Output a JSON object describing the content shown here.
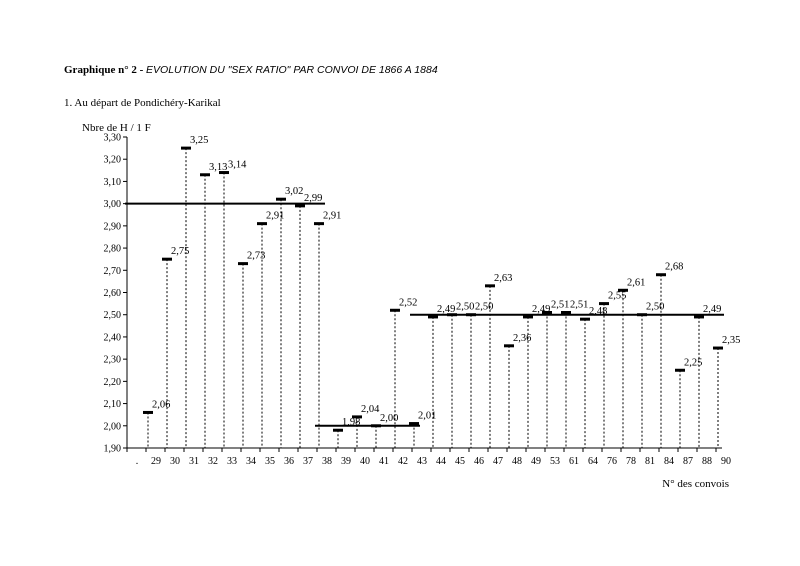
{
  "title": {
    "label": "Graphique n° 2 -",
    "text": "EVOLUTION DU \"SEX RATIO\" PAR CONVOI DE 1866 A 1884"
  },
  "subtitle": "1. Au départ de Pondichéry-Karikal",
  "chart_data": {
    "type": "scatter",
    "ylabel": "Nbre de H / 1 F",
    "xlabel": "N° des convois",
    "ylim": [
      1.9,
      3.3
    ],
    "ytick_step": 0.1,
    "grid": false,
    "categories": [
      ".",
      "29",
      "30",
      "31",
      "32",
      "33",
      "34",
      "35",
      "36",
      "37",
      "38",
      "39",
      "40",
      "41",
      "42",
      "43",
      "44",
      "45",
      "46",
      "47",
      "48",
      "49",
      "53",
      "61",
      "64",
      "76",
      "78",
      "81",
      "84",
      "87",
      "88",
      "90"
    ],
    "values": [
      null,
      2.06,
      2.75,
      3.25,
      3.13,
      3.14,
      2.73,
      2.91,
      3.02,
      2.99,
      2.91,
      1.98,
      2.04,
      2.0,
      2.52,
      2.01,
      2.49,
      2.5,
      2.5,
      2.63,
      2.36,
      2.49,
      2.51,
      2.51,
      2.48,
      2.55,
      2.61,
      2.5,
      2.68,
      2.25,
      2.49,
      2.35
    ],
    "labels": [
      "",
      "2,06",
      "2,75",
      "3,25",
      "3,13",
      "3,14",
      "2,73",
      "2,91",
      "3,02",
      "2,99",
      "2,91",
      "1,98",
      "2,04",
      "2,00",
      "2,52",
      "2,01",
      "2,49",
      "2,50",
      "2,50",
      "2,63",
      "2,36",
      "2,49",
      "2,51",
      "2,51",
      "2,48",
      "2,55",
      "2,61",
      "2,50",
      "2,68",
      "2,25",
      "2,49",
      "2,35"
    ],
    "mean_lines": [
      {
        "from": "29",
        "to": "38",
        "value": 3.0
      },
      {
        "from": "39",
        "to": "43",
        "value": 2.0
      },
      {
        "from": "44",
        "to": "90",
        "value": 2.5
      }
    ]
  }
}
